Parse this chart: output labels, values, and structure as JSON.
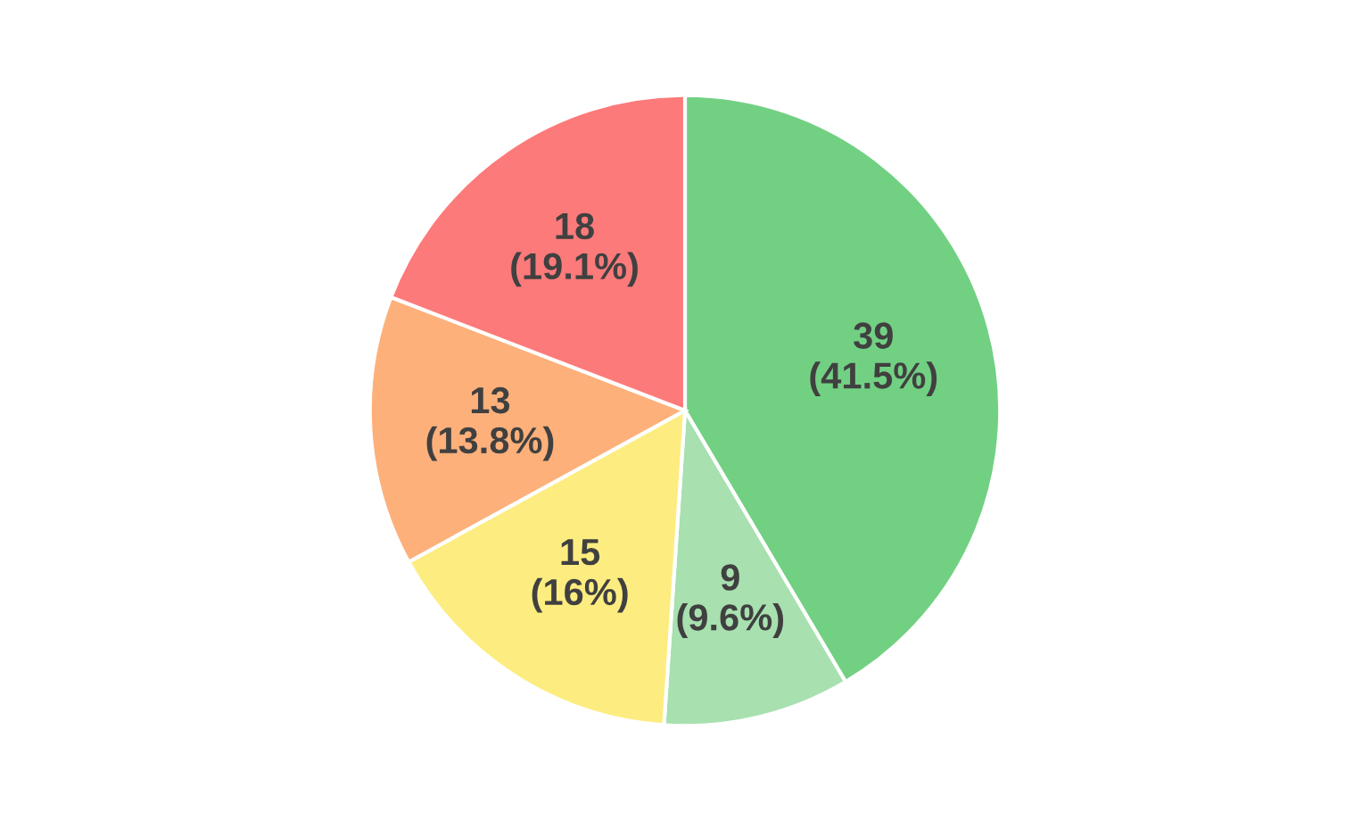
{
  "chart_data": {
    "type": "pie",
    "categories": [
      null,
      null,
      null,
      null,
      null
    ],
    "values": [
      39,
      9,
      15,
      13,
      18
    ],
    "colors": [
      "#72d083",
      "#a8e0b0",
      "#fded80",
      "#fdb07a",
      "#fd7a7a"
    ],
    "value_labels": [
      "39\n(41.5%)",
      "9\n(9.6%)",
      "15\n(16%)",
      "13\n(13.8%)",
      "18\n(19.1%)"
    ]
  }
}
